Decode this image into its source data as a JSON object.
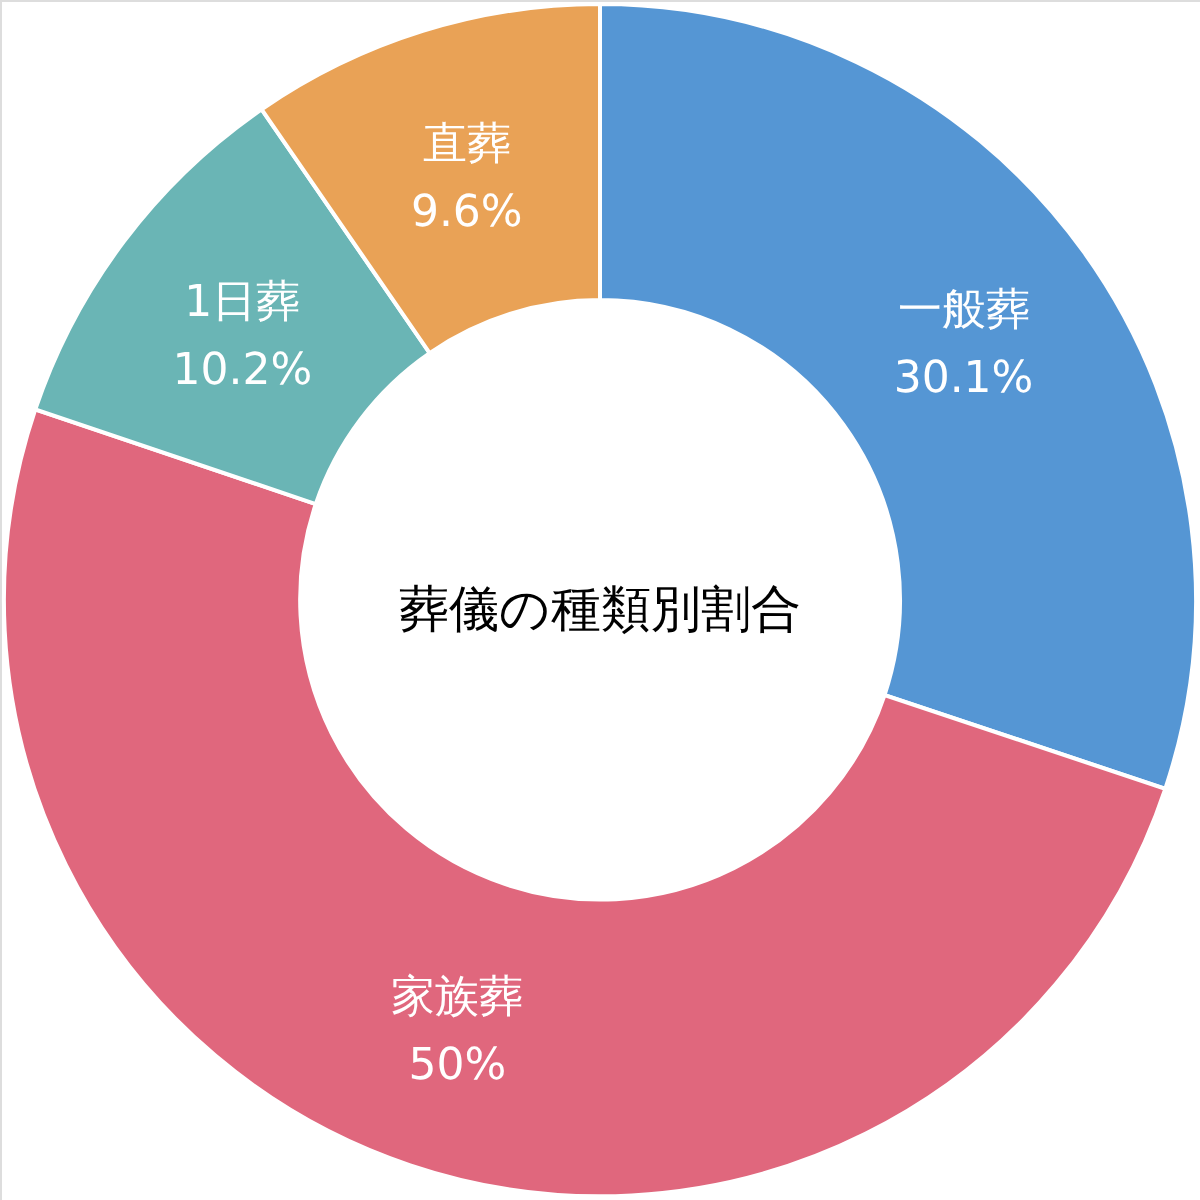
{
  "chart_data": {
    "type": "donut",
    "title": "葬儀の種類別割合",
    "categories": [
      "一般葬",
      "家族葬",
      "1日葬",
      "直葬"
    ],
    "values": [
      30.1,
      50,
      10.2,
      9.6
    ],
    "value_labels": [
      "30.1%",
      "50%",
      "10.2%",
      "9.6%"
    ],
    "colors": [
      "#5596d4",
      "#e0677d",
      "#6ab5b5",
      "#e9a256"
    ]
  }
}
